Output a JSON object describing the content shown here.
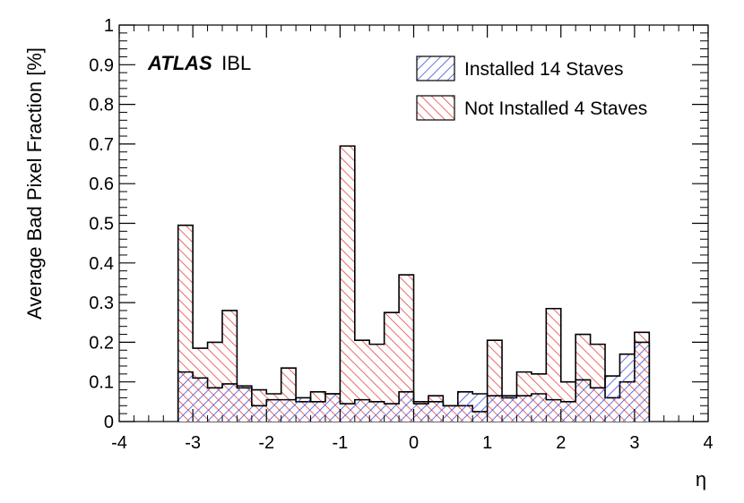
{
  "chart_data": {
    "type": "bar",
    "annotation": {
      "experiment": "ATLAS",
      "detector": "IBL"
    },
    "xlabel": "η",
    "ylabel": "Average Bad Pixel Fraction [%]",
    "xlim": [
      -4,
      4
    ],
    "ylim": [
      0,
      1
    ],
    "x_ticks": [
      "-4",
      "-3",
      "-2",
      "-1",
      "0",
      "1",
      "2",
      "3",
      "4"
    ],
    "y_ticks": [
      "0",
      "0.1",
      "0.2",
      "0.3",
      "0.4",
      "0.5",
      "0.6",
      "0.7",
      "0.8",
      "0.9",
      "1"
    ],
    "bin_edges": [
      -3.2,
      -3.0,
      -2.8,
      -2.6,
      -2.4,
      -2.2,
      -2.0,
      -1.8,
      -1.6,
      -1.4,
      -1.2,
      -1.0,
      -0.8,
      -0.6,
      -0.4,
      -0.2,
      0.0,
      0.2,
      0.4,
      0.6,
      0.8,
      1.0,
      1.2,
      1.4,
      1.6,
      1.8,
      2.0,
      2.2,
      2.4,
      2.6,
      2.8,
      3.0,
      3.2
    ],
    "series": [
      {
        "name": "Not Installed 4 Staves",
        "color": "#e8433f",
        "values": [
          0.495,
          0.185,
          0.2,
          0.28,
          0.085,
          0.08,
          0.07,
          0.135,
          0.05,
          0.075,
          0.07,
          0.695,
          0.205,
          0.195,
          0.275,
          0.37,
          0.05,
          0.065,
          0.04,
          0.04,
          0.025,
          0.205,
          0.06,
          0.125,
          0.12,
          0.285,
          0.1,
          0.22,
          0.195,
          0.06,
          0.1,
          0.225
        ]
      },
      {
        "name": "Installed 14 Staves",
        "color": "#3f4fe0",
        "values": [
          0.125,
          0.11,
          0.085,
          0.095,
          0.09,
          0.04,
          0.055,
          0.055,
          0.06,
          0.05,
          0.07,
          0.045,
          0.055,
          0.05,
          0.045,
          0.075,
          0.045,
          0.05,
          0.04,
          0.075,
          0.07,
          0.065,
          0.065,
          0.065,
          0.07,
          0.055,
          0.05,
          0.105,
          0.085,
          0.115,
          0.17,
          0.2
        ]
      }
    ],
    "legend": {
      "placement": "top-right",
      "entries": [
        "Installed 14 Staves",
        "Not Installed 4 Staves"
      ]
    }
  }
}
